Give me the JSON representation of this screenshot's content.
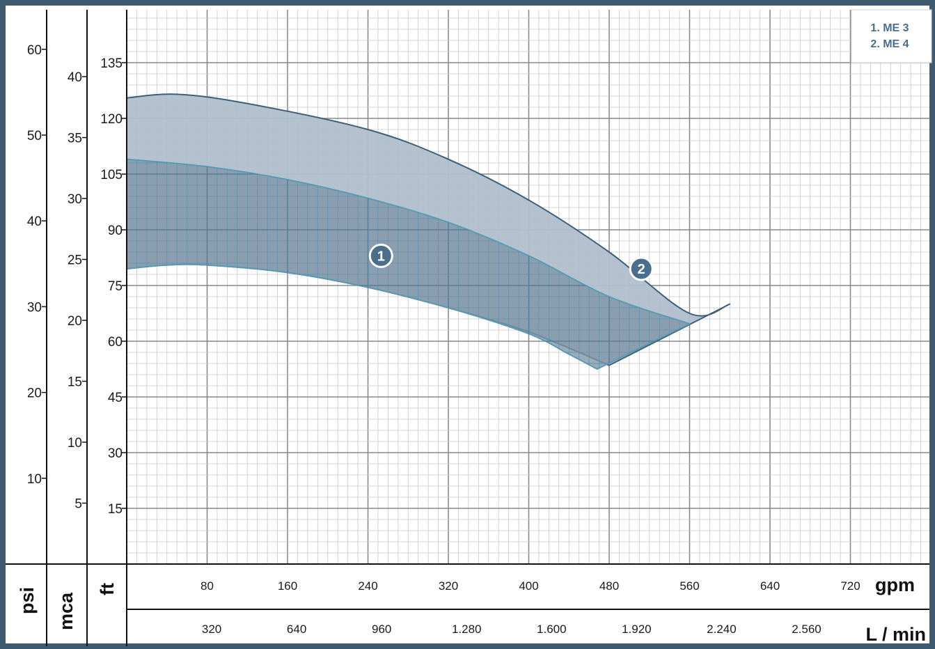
{
  "chart_data": {
    "type": "area",
    "x_axes": {
      "gpm": {
        "unit": "gpm",
        "ticks": [
          "80",
          "160",
          "240",
          "320",
          "400",
          "480",
          "560",
          "640",
          "720"
        ]
      },
      "lmin": {
        "unit": "L / min",
        "ticks": [
          "320",
          "640",
          "960",
          "1.280",
          "1.600",
          "1.920",
          "2.240",
          "2.560"
        ]
      }
    },
    "y_axes": {
      "psi": {
        "unit": "psi",
        "ticks": [
          "10",
          "20",
          "30",
          "40",
          "50",
          "60"
        ]
      },
      "mca": {
        "unit": "mca",
        "ticks": [
          "5",
          "10",
          "15",
          "20",
          "25",
          "30",
          "35",
          "40"
        ]
      },
      "ft": {
        "unit": "ft",
        "ticks": [
          "15",
          "30",
          "45",
          "60",
          "75",
          "90",
          "105",
          "120",
          "135"
        ]
      }
    },
    "x_unit": "gpm",
    "y_unit": "ft",
    "xlim": [
      0,
      800
    ],
    "ylim": [
      0,
      150
    ],
    "grid": true,
    "legend_position": "top-right",
    "legend": [
      "1. ME 3",
      "2. ME 4"
    ],
    "series": [
      {
        "name": "1. ME 3",
        "label": "1",
        "fill": "#7f93a6",
        "stroke": "#5a9ab2",
        "label_at": [
          253,
          83
        ],
        "upper": [
          [
            0,
            109
          ],
          [
            80,
            107
          ],
          [
            160,
            103.5
          ],
          [
            240,
            98.5
          ],
          [
            320,
            92
          ],
          [
            400,
            83
          ],
          [
            480,
            72
          ],
          [
            560,
            64.7
          ]
        ],
        "lower": [
          [
            0,
            79.5
          ],
          [
            40,
            80.5
          ],
          [
            80,
            80.5
          ],
          [
            160,
            78.5
          ],
          [
            240,
            74.5
          ],
          [
            320,
            69
          ],
          [
            400,
            62
          ],
          [
            440,
            56.5
          ],
          [
            468,
            52.5
          ]
        ]
      },
      {
        "name": "2. ME 4",
        "label": "2",
        "fill": "#b0bfcd",
        "stroke": "#3e5f7a",
        "label_at": [
          512,
          79.5
        ],
        "upper": [
          [
            0,
            125.5
          ],
          [
            50,
            126.5
          ],
          [
            120,
            124
          ],
          [
            240,
            117
          ],
          [
            320,
            109
          ],
          [
            400,
            98
          ],
          [
            480,
            84
          ],
          [
            560,
            67.5
          ],
          [
            600,
            70
          ]
        ],
        "lower": [
          [
            0,
            79.5
          ],
          [
            40,
            80.5
          ],
          [
            80,
            80.5
          ],
          [
            160,
            78.5
          ],
          [
            240,
            74.5
          ],
          [
            320,
            69
          ],
          [
            400,
            62.5
          ],
          [
            480,
            53.5
          ]
        ]
      }
    ]
  }
}
